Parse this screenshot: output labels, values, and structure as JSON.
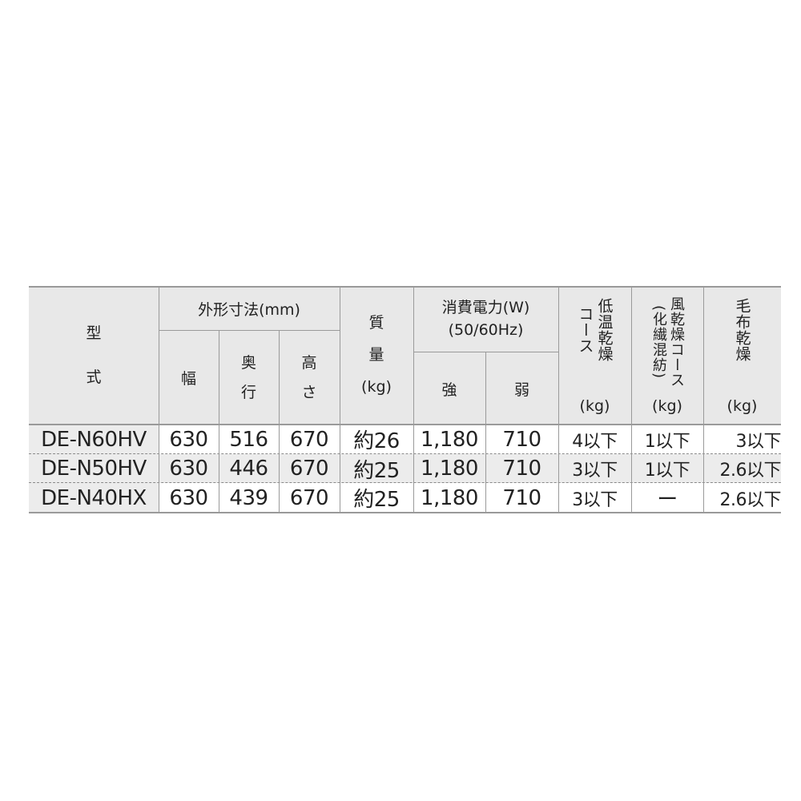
{
  "headers": {
    "model": [
      "型",
      "式"
    ],
    "dimensions": "外形寸法(mm)",
    "width": "幅",
    "depth": [
      "奥",
      "行"
    ],
    "height": [
      "高",
      "さ"
    ],
    "mass": [
      "質",
      "量"
    ],
    "mass_unit": "(kg)",
    "power": "消費電力(W)",
    "power_freq": "(50/60Hz)",
    "strong": "強",
    "weak": "弱",
    "low_temp": [
      "低温乾燥",
      "コース"
    ],
    "low_temp_unit": "(kg)",
    "wind": [
      "風乾燥コース",
      "(化繊混紡)"
    ],
    "wind_unit": "(kg)",
    "blanket": "毛布乾燥",
    "blanket_unit": "(kg)"
  },
  "rows": [
    {
      "model": "DE-N60HV",
      "width": "630",
      "depth": "516",
      "height": "670",
      "mass": "約26",
      "strong": "1,180",
      "weak": "710",
      "low_temp": "4以下",
      "wind": "1以下",
      "blanket": "3以下"
    },
    {
      "model": "DE-N50HV",
      "width": "630",
      "depth": "446",
      "height": "670",
      "mass": "約25",
      "strong": "1,180",
      "weak": "710",
      "low_temp": "3以下",
      "wind": "1以下",
      "blanket": "2.6以下"
    },
    {
      "model": "DE-N40HX",
      "width": "630",
      "depth": "439",
      "height": "670",
      "mass": "約25",
      "strong": "1,180",
      "weak": "710",
      "low_temp": "3以下",
      "wind": "ー",
      "blanket": "2.6以下"
    }
  ]
}
